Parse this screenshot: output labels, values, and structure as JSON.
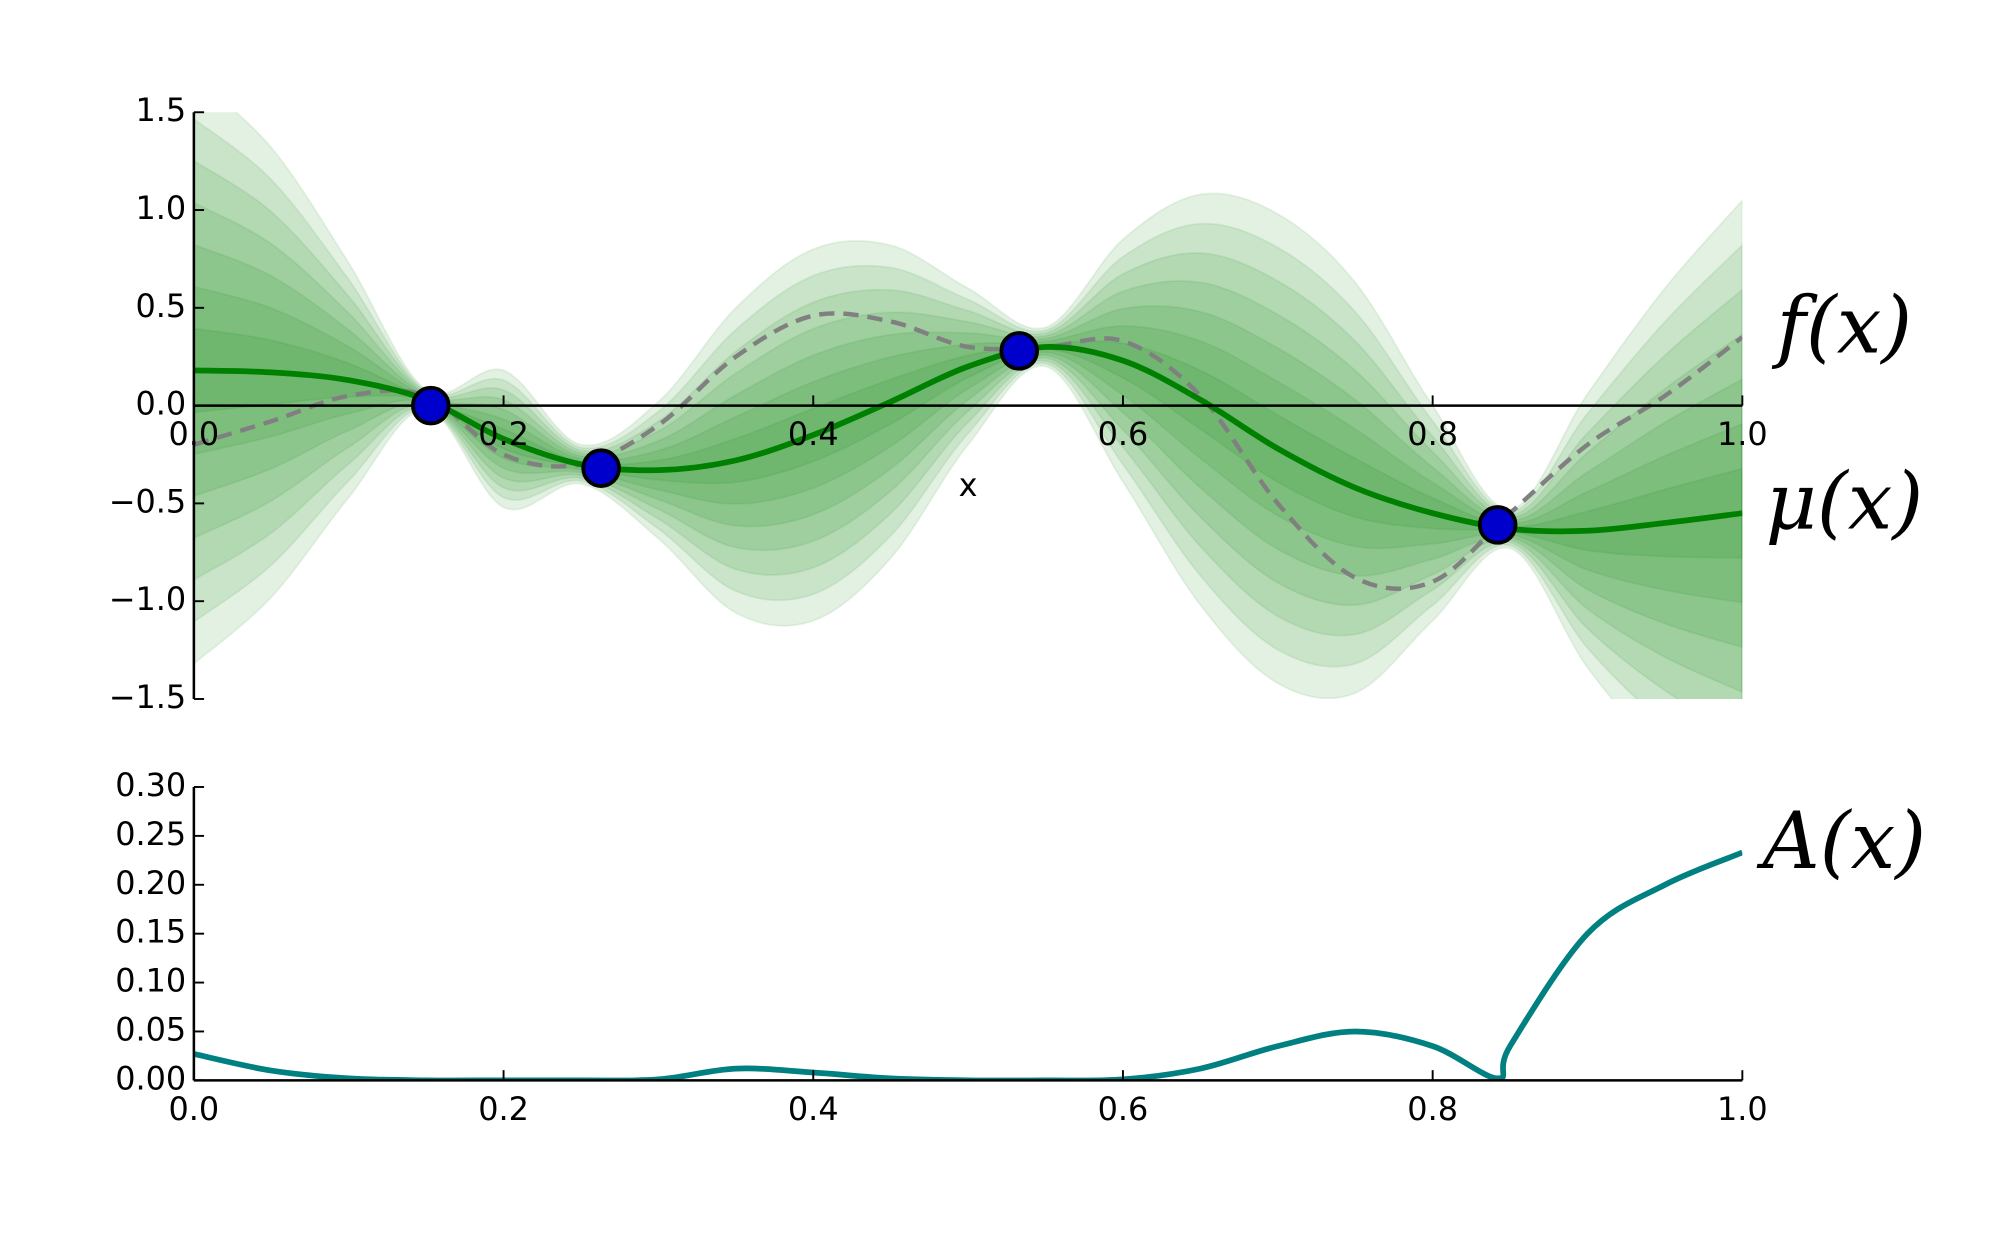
{
  "chart_data": [
    {
      "type": "line",
      "xlabel": "x",
      "x": [
        0,
        0.05,
        0.1,
        0.15,
        0.2,
        0.25,
        0.3,
        0.35,
        0.4,
        0.45,
        0.5,
        0.55,
        0.6,
        0.65,
        0.7,
        0.75,
        0.8,
        0.85,
        0.9,
        0.95,
        1.0
      ],
      "xlim": [
        0,
        1
      ],
      "ylim": [
        -1.5,
        1.5
      ],
      "xticks": [
        {
          "value": 0,
          "label": "0.0"
        },
        {
          "value": 0.2,
          "label": "0.2"
        },
        {
          "value": 0.4,
          "label": "0.4"
        },
        {
          "value": 0.6,
          "label": "0.6"
        },
        {
          "value": 0.8,
          "label": "0.8"
        },
        {
          "value": 1,
          "label": "1.0"
        }
      ],
      "yticks": [
        {
          "value": -1.5,
          "label": "−1.5"
        },
        {
          "value": -1,
          "label": "−1.0"
        },
        {
          "value": -0.5,
          "label": "−0.5"
        },
        {
          "value": 0,
          "label": "0.0"
        },
        {
          "value": 0.5,
          "label": "0.5"
        },
        {
          "value": 1,
          "label": "1.0"
        },
        {
          "value": 1.5,
          "label": "1.5"
        }
      ],
      "series": [
        {
          "name": "f(x)",
          "color": "#808080",
          "dashed": true,
          "values": [
            -0.2,
            -0.08,
            0.05,
            0.05,
            -0.25,
            -0.3,
            -0.1,
            0.25,
            0.46,
            0.43,
            0.3,
            0.3,
            0.33,
            0.05,
            -0.5,
            -0.88,
            -0.9,
            -0.55,
            -0.2,
            0.05,
            0.35
          ]
        },
        {
          "name": "μ(x)",
          "color": "#008000",
          "dashed": false,
          "values": [
            0.18,
            0.17,
            0.13,
            0.03,
            -0.17,
            -0.3,
            -0.33,
            -0.28,
            -0.15,
            0.02,
            0.2,
            0.3,
            0.23,
            0.03,
            -0.22,
            -0.42,
            -0.55,
            -0.63,
            -0.64,
            -0.6,
            -0.55
          ]
        }
      ],
      "band": {
        "color": "#008000",
        "values": [
          1.5,
          1.15,
          0.6,
          0.05,
          0.35,
          0.1,
          0.35,
          0.78,
          0.95,
          0.8,
          0.4,
          0.1,
          0.62,
          1.05,
          1.2,
          1.05,
          0.55,
          0.1,
          0.7,
          1.2,
          1.6
        ]
      },
      "points": {
        "color": "#0000cc",
        "x": [
          0.153,
          0.263,
          0.533,
          0.842
        ],
        "values": [
          0.0,
          -0.32,
          0.28,
          -0.61
        ]
      }
    },
    {
      "type": "line",
      "x": [
        0,
        0.05,
        0.1,
        0.15,
        0.2,
        0.25,
        0.3,
        0.35,
        0.4,
        0.45,
        0.5,
        0.55,
        0.6,
        0.65,
        0.7,
        0.75,
        0.8,
        0.842,
        0.85,
        0.9,
        0.95,
        1.0
      ],
      "xlim": [
        0,
        1
      ],
      "ylim": [
        0,
        0.3
      ],
      "xticks": [
        {
          "value": 0,
          "label": "0.0"
        },
        {
          "value": 0.2,
          "label": "0.2"
        },
        {
          "value": 0.4,
          "label": "0.4"
        },
        {
          "value": 0.6,
          "label": "0.6"
        },
        {
          "value": 0.8,
          "label": "0.8"
        },
        {
          "value": 1,
          "label": "1.0"
        }
      ],
      "yticks": [
        {
          "value": 0,
          "label": "0.00"
        },
        {
          "value": 0.05,
          "label": "0.05"
        },
        {
          "value": 0.1,
          "label": "0.10"
        },
        {
          "value": 0.15,
          "label": "0.15"
        },
        {
          "value": 0.2,
          "label": "0.20"
        },
        {
          "value": 0.25,
          "label": "0.25"
        },
        {
          "value": 0.3,
          "label": "0.30"
        }
      ],
      "series": [
        {
          "name": "A(x)",
          "color": "#008080",
          "dashed": false,
          "values": [
            0.027,
            0.01,
            0.002,
            0,
            0,
            0,
            0.001,
            0.012,
            0.008,
            0.002,
            0,
            0,
            0.001,
            0.012,
            0.035,
            0.05,
            0.035,
            0.002,
            0.035,
            0.15,
            0.2,
            0.233
          ]
        }
      ]
    }
  ]
}
